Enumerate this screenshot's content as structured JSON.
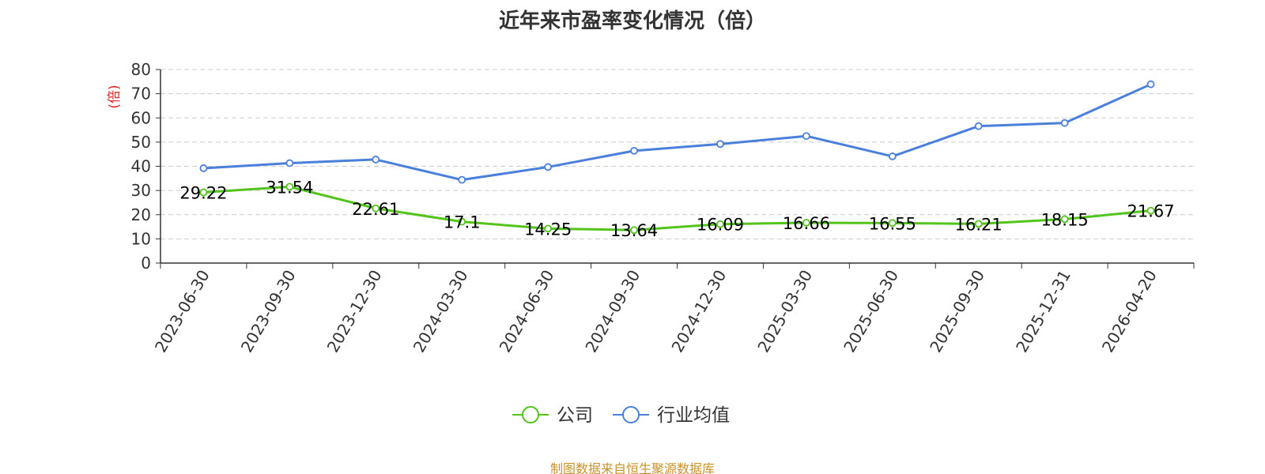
{
  "chart_data": {
    "type": "line",
    "title": "近年来市盈率变化情况（倍）",
    "ylabel": "(倍)",
    "xlabel": "",
    "ylim": [
      0,
      80
    ],
    "yticks": [
      0,
      10,
      20,
      30,
      40,
      50,
      60,
      70,
      80
    ],
    "grid": true,
    "legend_position": "bottom-center",
    "categories": [
      "2023-06-30",
      "2023-09-30",
      "2023-12-30",
      "2024-03-30",
      "2024-06-30",
      "2024-09-30",
      "2024-12-30",
      "2025-03-30",
      "2025-06-30",
      "2025-09-30",
      "2025-12-31",
      "2026-04-20"
    ],
    "series": [
      {
        "name": "公司",
        "color": "#52c41a",
        "values": [
          29.22,
          31.54,
          22.61,
          17.1,
          14.25,
          13.64,
          16.09,
          16.66,
          16.55,
          16.21,
          18.15,
          21.67
        ],
        "labels": [
          "29.22",
          "31.54",
          "22.61",
          "17.1",
          "14.25",
          "13.64",
          "16.09",
          "16.66",
          "16.55",
          "16.21",
          "18.15",
          "21.67"
        ]
      },
      {
        "name": "行业均值",
        "color": "#4a7fdb",
        "values": [
          39.2,
          41.3,
          42.8,
          34.4,
          39.7,
          46.4,
          49.2,
          52.5,
          44.1,
          56.6,
          57.9,
          73.9
        ]
      }
    ]
  },
  "footer": {
    "source": "制图数据来自恒生聚源数据库",
    "color": "#c8922a"
  },
  "ylabel_color": "#e02020"
}
